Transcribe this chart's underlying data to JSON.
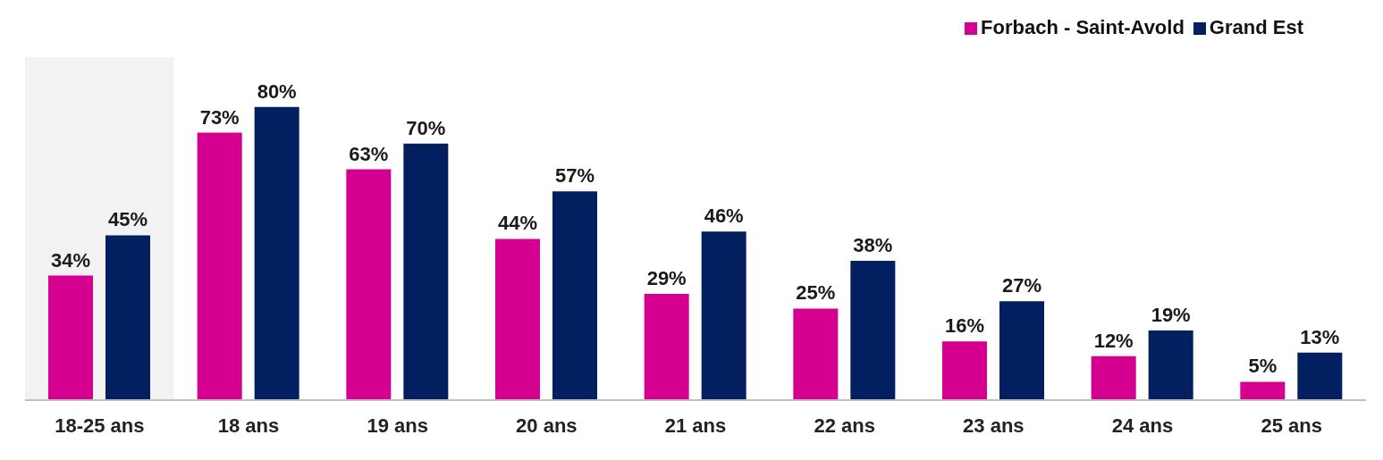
{
  "chart_data": {
    "type": "bar",
    "categories": [
      "18-25 ans",
      "18 ans",
      "19 ans",
      "20 ans",
      "21 ans",
      "22 ans",
      "23 ans",
      "24 ans",
      "25 ans"
    ],
    "series": [
      {
        "name": "Forbach - Saint-Avold",
        "color": "#d5008f",
        "values": [
          34,
          73,
          63,
          44,
          29,
          25,
          16,
          12,
          5
        ],
        "value_labels": [
          "34%",
          "73%",
          "63%",
          "44%",
          "29%",
          "25%",
          "16%",
          "12%",
          "5%"
        ]
      },
      {
        "name": "Grand Est",
        "color": "#02205f",
        "values": [
          45,
          80,
          70,
          57,
          46,
          38,
          27,
          19,
          13
        ],
        "value_labels": [
          "45%",
          "80%",
          "70%",
          "57%",
          "46%",
          "38%",
          "27%",
          "19%",
          "13%"
        ]
      }
    ],
    "bands": [
      {
        "axis": "x",
        "from": "18-25 ans",
        "to": "18-25 ans",
        "color": "#f2f2f2"
      }
    ],
    "legend": "top right",
    "grid": false
  }
}
